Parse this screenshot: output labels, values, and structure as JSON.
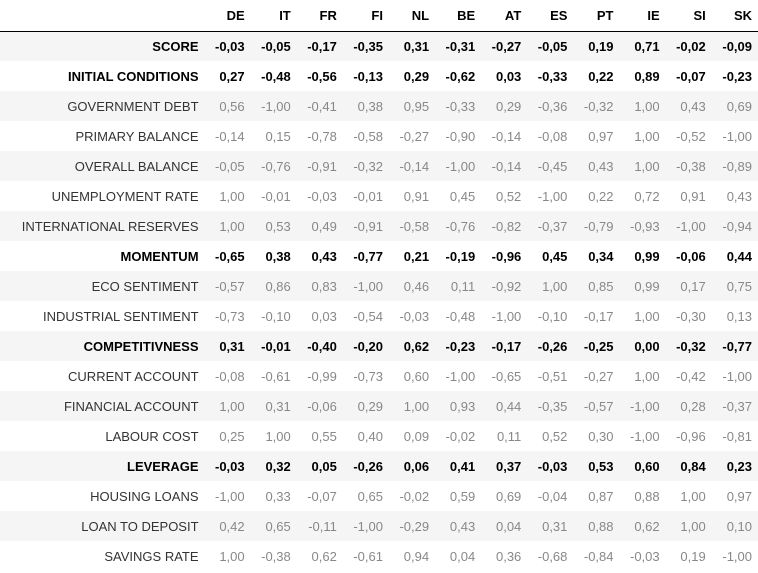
{
  "columns": [
    "DE",
    "IT",
    "FR",
    "FI",
    "NL",
    "BE",
    "AT",
    "ES",
    "PT",
    "IE",
    "SI",
    "SK"
  ],
  "rows": [
    {
      "label": "SCORE",
      "bold": true,
      "values": [
        "-0,03",
        "-0,05",
        "-0,17",
        "-0,35",
        "0,31",
        "-0,31",
        "-0,27",
        "-0,05",
        "0,19",
        "0,71",
        "-0,02",
        "-0,09"
      ]
    },
    {
      "label": "INITIAL CONDITIONS",
      "bold": true,
      "values": [
        "0,27",
        "-0,48",
        "-0,56",
        "-0,13",
        "0,29",
        "-0,62",
        "0,03",
        "-0,33",
        "0,22",
        "0,89",
        "-0,07",
        "-0,23"
      ]
    },
    {
      "label": "GOVERNMENT DEBT",
      "bold": false,
      "values": [
        "0,56",
        "-1,00",
        "-0,41",
        "0,38",
        "0,95",
        "-0,33",
        "0,29",
        "-0,36",
        "-0,32",
        "1,00",
        "0,43",
        "0,69"
      ]
    },
    {
      "label": "PRIMARY BALANCE",
      "bold": false,
      "values": [
        "-0,14",
        "0,15",
        "-0,78",
        "-0,58",
        "-0,27",
        "-0,90",
        "-0,14",
        "-0,08",
        "0,97",
        "1,00",
        "-0,52",
        "-1,00"
      ]
    },
    {
      "label": "OVERALL BALANCE",
      "bold": false,
      "values": [
        "-0,05",
        "-0,76",
        "-0,91",
        "-0,32",
        "-0,14",
        "-1,00",
        "-0,14",
        "-0,45",
        "0,43",
        "1,00",
        "-0,38",
        "-0,89"
      ]
    },
    {
      "label": "UNEMPLOYMENT RATE",
      "bold": false,
      "values": [
        "1,00",
        "-0,01",
        "-0,03",
        "-0,01",
        "0,91",
        "0,45",
        "0,52",
        "-1,00",
        "0,22",
        "0,72",
        "0,91",
        "0,43"
      ]
    },
    {
      "label": "INTERNATIONAL RESERVES",
      "bold": false,
      "values": [
        "1,00",
        "0,53",
        "0,49",
        "-0,91",
        "-0,58",
        "-0,76",
        "-0,82",
        "-0,37",
        "-0,79",
        "-0,93",
        "-1,00",
        "-0,94"
      ]
    },
    {
      "label": "MOMENTUM",
      "bold": true,
      "values": [
        "-0,65",
        "0,38",
        "0,43",
        "-0,77",
        "0,21",
        "-0,19",
        "-0,96",
        "0,45",
        "0,34",
        "0,99",
        "-0,06",
        "0,44"
      ]
    },
    {
      "label": "ECO SENTIMENT",
      "bold": false,
      "values": [
        "-0,57",
        "0,86",
        "0,83",
        "-1,00",
        "0,46",
        "0,11",
        "-0,92",
        "1,00",
        "0,85",
        "0,99",
        "0,17",
        "0,75"
      ]
    },
    {
      "label": "INDUSTRIAL SENTIMENT",
      "bold": false,
      "values": [
        "-0,73",
        "-0,10",
        "0,03",
        "-0,54",
        "-0,03",
        "-0,48",
        "-1,00",
        "-0,10",
        "-0,17",
        "1,00",
        "-0,30",
        "0,13"
      ]
    },
    {
      "label": "COMPETITIVNESS",
      "bold": true,
      "values": [
        "0,31",
        "-0,01",
        "-0,40",
        "-0,20",
        "0,62",
        "-0,23",
        "-0,17",
        "-0,26",
        "-0,25",
        "0,00",
        "-0,32",
        "-0,77"
      ]
    },
    {
      "label": "CURRENT ACCOUNT",
      "bold": false,
      "values": [
        "-0,08",
        "-0,61",
        "-0,99",
        "-0,73",
        "0,60",
        "-1,00",
        "-0,65",
        "-0,51",
        "-0,27",
        "1,00",
        "-0,42",
        "-1,00"
      ]
    },
    {
      "label": "FINANCIAL ACCOUNT",
      "bold": false,
      "values": [
        "1,00",
        "0,31",
        "-0,06",
        "0,29",
        "1,00",
        "0,93",
        "0,44",
        "-0,35",
        "-0,57",
        "-1,00",
        "0,28",
        "-0,37"
      ]
    },
    {
      "label": "LABOUR COST",
      "bold": false,
      "values": [
        "0,25",
        "1,00",
        "0,55",
        "0,40",
        "0,09",
        "-0,02",
        "0,11",
        "0,52",
        "0,30",
        "-1,00",
        "-0,96",
        "-0,81"
      ]
    },
    {
      "label": "LEVERAGE",
      "bold": true,
      "values": [
        "-0,03",
        "0,32",
        "0,05",
        "-0,26",
        "0,06",
        "0,41",
        "0,37",
        "-0,03",
        "0,53",
        "0,60",
        "0,84",
        "0,23"
      ]
    },
    {
      "label": "HOUSING LOANS",
      "bold": false,
      "values": [
        "-1,00",
        "0,33",
        "-0,07",
        "0,65",
        "-0,02",
        "0,59",
        "0,69",
        "-0,04",
        "0,87",
        "0,88",
        "1,00",
        "0,97"
      ]
    },
    {
      "label": "LOAN TO DEPOSIT",
      "bold": false,
      "values": [
        "0,42",
        "0,65",
        "-0,11",
        "-1,00",
        "-0,29",
        "0,43",
        "0,04",
        "0,31",
        "0,88",
        "0,62",
        "1,00",
        "0,10"
      ]
    },
    {
      "label": "SAVINGS RATE",
      "bold": false,
      "values": [
        "1,00",
        "-0,38",
        "0,62",
        "-0,61",
        "0,94",
        "0,04",
        "0,36",
        "-0,68",
        "-0,84",
        "-0,03",
        "0,19",
        "-1,00"
      ]
    }
  ]
}
